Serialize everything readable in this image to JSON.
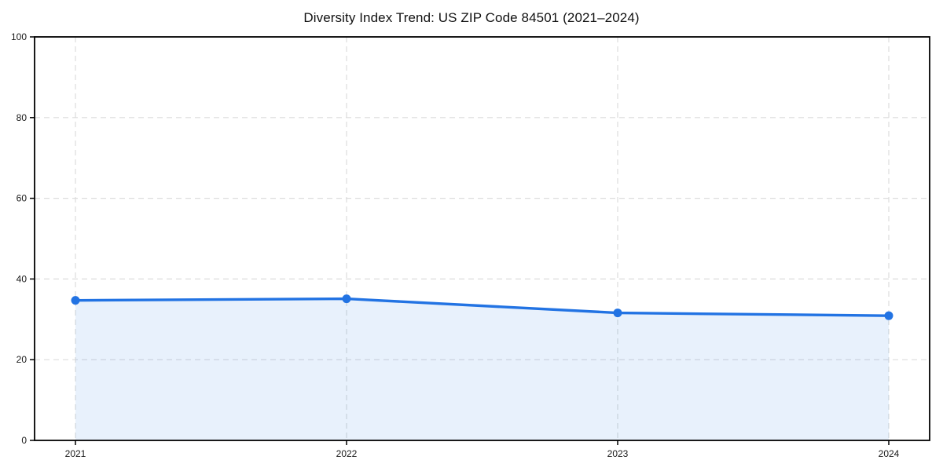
{
  "chart_data": {
    "type": "area",
    "title": "Diversity Index Trend: US ZIP Code 84501 (2021–2024)",
    "categories": [
      "2021",
      "2022",
      "2023",
      "2024"
    ],
    "series": [
      {
        "name": "Diversity Index",
        "values": [
          34.7,
          35.1,
          31.6,
          30.9
        ]
      }
    ],
    "xlabel": "",
    "ylabel": "",
    "ylim": [
      0,
      100
    ],
    "y_ticks": [
      0,
      20,
      40,
      60,
      80,
      100
    ],
    "grid": true,
    "grid_style": "dashed",
    "legend": "none",
    "colors": {
      "line": "#2273e3",
      "marker": "#2273e3",
      "fill": "rgba(34, 115, 227, 0.10)",
      "grid": "#dcdcdc",
      "axis": "#000000",
      "tick_text": "#1a1a1a",
      "background": "#ffffff"
    }
  }
}
